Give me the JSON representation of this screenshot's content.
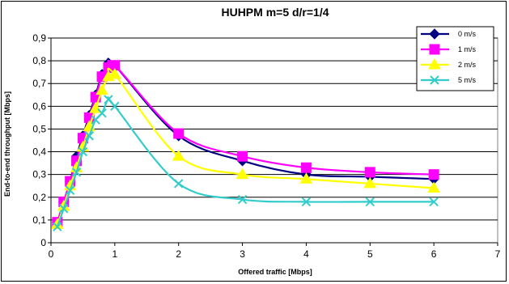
{
  "chart_data": {
    "type": "line",
    "title": "HUHPM m=5 d/r=1/4",
    "xlabel": "Offered traffic [Mbps]",
    "ylabel": "End-to-end throughput [Mbps]",
    "xlim": [
      0,
      7
    ],
    "ylim": [
      0,
      0.9
    ],
    "x_ticks": [
      "0",
      "1",
      "2",
      "3",
      "4",
      "5",
      "6",
      "7"
    ],
    "y_ticks": [
      "0",
      "0,1",
      "0,2",
      "0,3",
      "0,4",
      "0,5",
      "0,6",
      "0,7",
      "0,8",
      "0,9"
    ],
    "grid": "horizontal",
    "legend_position": "top-right",
    "x": [
      0.1,
      0.2,
      0.3,
      0.4,
      0.5,
      0.6,
      0.7,
      0.8,
      0.9,
      1,
      2,
      3,
      4,
      5,
      6
    ],
    "series": [
      {
        "name": "0 m/s",
        "color": "#000080",
        "marker": "diamond",
        "values": [
          0.09,
          0.18,
          0.27,
          0.38,
          0.47,
          0.56,
          0.65,
          0.74,
          0.79,
          0.78,
          0.47,
          0.36,
          0.3,
          0.29,
          0.28
        ]
      },
      {
        "name": "1 m/s",
        "color": "#FF00FF",
        "marker": "square",
        "values": [
          0.09,
          0.18,
          0.27,
          0.36,
          0.46,
          0.55,
          0.64,
          0.73,
          0.77,
          0.78,
          0.48,
          0.38,
          0.33,
          0.31,
          0.3
        ]
      },
      {
        "name": "2 m/s",
        "color": "#FFFF00",
        "marker": "triangle",
        "values": [
          0.08,
          0.16,
          0.25,
          0.33,
          0.42,
          0.51,
          0.59,
          0.67,
          0.73,
          0.74,
          0.38,
          0.3,
          0.28,
          0.26,
          0.24
        ]
      },
      {
        "name": "5 m/s",
        "color": "#33CCCC",
        "marker": "x",
        "values": [
          0.07,
          0.15,
          0.23,
          0.31,
          0.4,
          0.47,
          0.54,
          0.57,
          0.63,
          0.6,
          0.26,
          0.19,
          0.18,
          0.18,
          0.18
        ]
      }
    ]
  }
}
